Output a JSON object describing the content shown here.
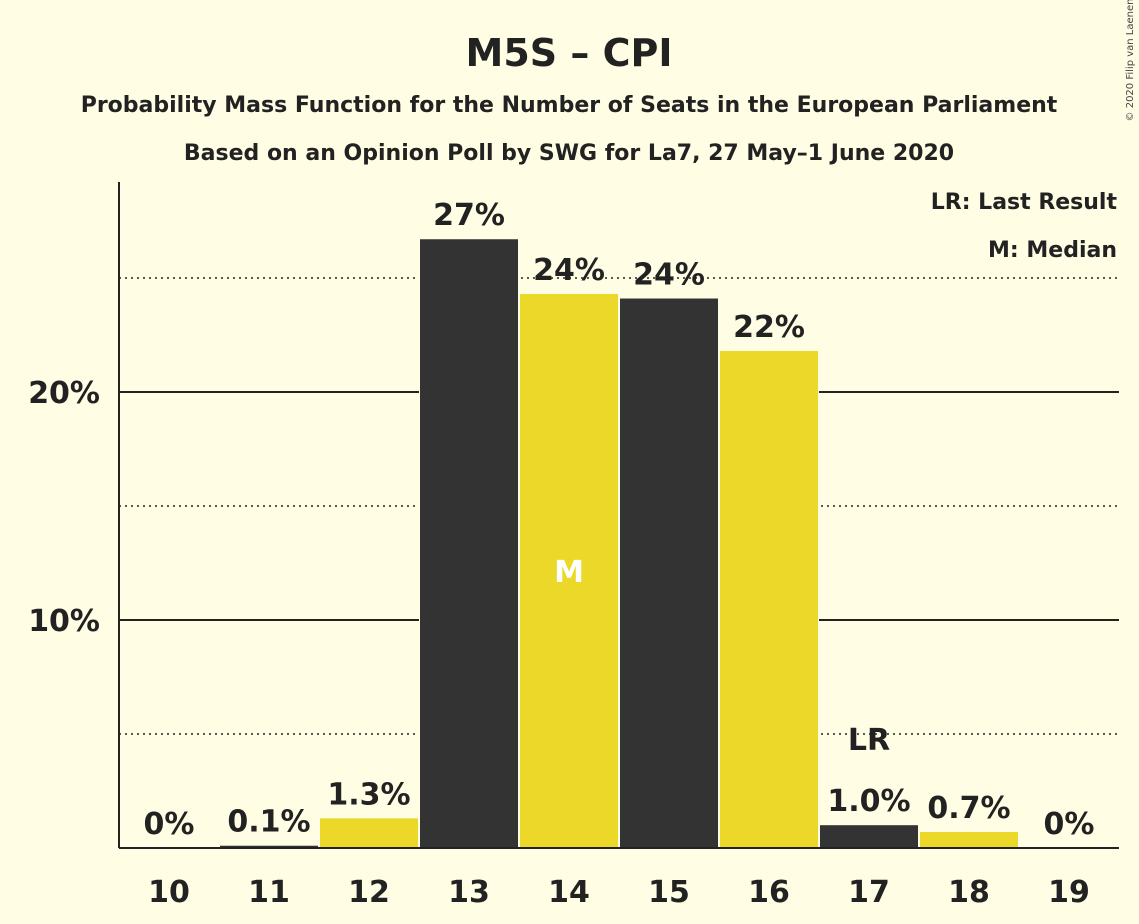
{
  "chart_data": {
    "type": "bar",
    "title": "M5S – CPI",
    "subtitle1": "Probability Mass Function for the Number of Seats in the European Parliament",
    "subtitle2": "Based on an Opinion Poll by SWG for La7, 27 May–1 June 2020",
    "legend_lr": "LR: Last Result",
    "legend_m": "M: Median",
    "copyright": "© 2020 Filip van Laenen",
    "categories": [
      "10",
      "11",
      "12",
      "13",
      "14",
      "15",
      "16",
      "17",
      "18",
      "19"
    ],
    "values": [
      0,
      0.1,
      1.3,
      26.7,
      24.3,
      24.1,
      21.8,
      1.0,
      0.7,
      0
    ],
    "labels": [
      "0%",
      "0.1%",
      "1.3%",
      "27%",
      "24%",
      "24%",
      "22%",
      "1.0%",
      "0.7%",
      "0%"
    ],
    "bar_colors": [
      "#333333",
      "#333333",
      "#ecd829",
      "#333333",
      "#ecd829",
      "#333333",
      "#ecd829",
      "#333333",
      "#ecd829",
      "#333333"
    ],
    "median_marker": {
      "category": "14",
      "text": "M"
    },
    "last_result_marker": {
      "category": "17",
      "text": "LR"
    },
    "yticks": [
      {
        "value": 10,
        "label": "10%"
      },
      {
        "value": 20,
        "label": "20%"
      }
    ],
    "minor_gridlines": [
      5,
      15,
      25
    ],
    "ylim": [
      0,
      29
    ],
    "grid": true,
    "legend_position": "top-right",
    "colors": {
      "background": "#fffde4",
      "dark": "#333333",
      "yellow": "#ecd829"
    }
  }
}
